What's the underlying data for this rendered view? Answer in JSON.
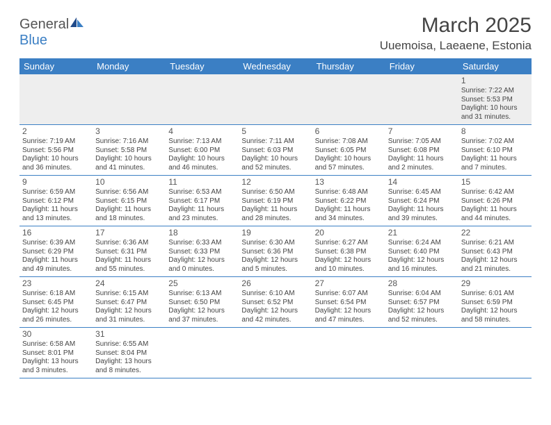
{
  "brand": {
    "part1": "General",
    "part2": "Blue"
  },
  "title": "March 2025",
  "location": "Uuemoisa, Laeaene, Estonia",
  "colors": {
    "header_bg": "#3b7fc4",
    "text": "#444444"
  },
  "weekdays": [
    "Sunday",
    "Monday",
    "Tuesday",
    "Wednesday",
    "Thursday",
    "Friday",
    "Saturday"
  ],
  "weeks": [
    [
      null,
      null,
      null,
      null,
      null,
      null,
      {
        "n": "1",
        "sr": "Sunrise: 7:22 AM",
        "ss": "Sunset: 5:53 PM",
        "d1": "Daylight: 10 hours",
        "d2": "and 31 minutes."
      }
    ],
    [
      {
        "n": "2",
        "sr": "Sunrise: 7:19 AM",
        "ss": "Sunset: 5:56 PM",
        "d1": "Daylight: 10 hours",
        "d2": "and 36 minutes."
      },
      {
        "n": "3",
        "sr": "Sunrise: 7:16 AM",
        "ss": "Sunset: 5:58 PM",
        "d1": "Daylight: 10 hours",
        "d2": "and 41 minutes."
      },
      {
        "n": "4",
        "sr": "Sunrise: 7:13 AM",
        "ss": "Sunset: 6:00 PM",
        "d1": "Daylight: 10 hours",
        "d2": "and 46 minutes."
      },
      {
        "n": "5",
        "sr": "Sunrise: 7:11 AM",
        "ss": "Sunset: 6:03 PM",
        "d1": "Daylight: 10 hours",
        "d2": "and 52 minutes."
      },
      {
        "n": "6",
        "sr": "Sunrise: 7:08 AM",
        "ss": "Sunset: 6:05 PM",
        "d1": "Daylight: 10 hours",
        "d2": "and 57 minutes."
      },
      {
        "n": "7",
        "sr": "Sunrise: 7:05 AM",
        "ss": "Sunset: 6:08 PM",
        "d1": "Daylight: 11 hours",
        "d2": "and 2 minutes."
      },
      {
        "n": "8",
        "sr": "Sunrise: 7:02 AM",
        "ss": "Sunset: 6:10 PM",
        "d1": "Daylight: 11 hours",
        "d2": "and 7 minutes."
      }
    ],
    [
      {
        "n": "9",
        "sr": "Sunrise: 6:59 AM",
        "ss": "Sunset: 6:12 PM",
        "d1": "Daylight: 11 hours",
        "d2": "and 13 minutes."
      },
      {
        "n": "10",
        "sr": "Sunrise: 6:56 AM",
        "ss": "Sunset: 6:15 PM",
        "d1": "Daylight: 11 hours",
        "d2": "and 18 minutes."
      },
      {
        "n": "11",
        "sr": "Sunrise: 6:53 AM",
        "ss": "Sunset: 6:17 PM",
        "d1": "Daylight: 11 hours",
        "d2": "and 23 minutes."
      },
      {
        "n": "12",
        "sr": "Sunrise: 6:50 AM",
        "ss": "Sunset: 6:19 PM",
        "d1": "Daylight: 11 hours",
        "d2": "and 28 minutes."
      },
      {
        "n": "13",
        "sr": "Sunrise: 6:48 AM",
        "ss": "Sunset: 6:22 PM",
        "d1": "Daylight: 11 hours",
        "d2": "and 34 minutes."
      },
      {
        "n": "14",
        "sr": "Sunrise: 6:45 AM",
        "ss": "Sunset: 6:24 PM",
        "d1": "Daylight: 11 hours",
        "d2": "and 39 minutes."
      },
      {
        "n": "15",
        "sr": "Sunrise: 6:42 AM",
        "ss": "Sunset: 6:26 PM",
        "d1": "Daylight: 11 hours",
        "d2": "and 44 minutes."
      }
    ],
    [
      {
        "n": "16",
        "sr": "Sunrise: 6:39 AM",
        "ss": "Sunset: 6:29 PM",
        "d1": "Daylight: 11 hours",
        "d2": "and 49 minutes."
      },
      {
        "n": "17",
        "sr": "Sunrise: 6:36 AM",
        "ss": "Sunset: 6:31 PM",
        "d1": "Daylight: 11 hours",
        "d2": "and 55 minutes."
      },
      {
        "n": "18",
        "sr": "Sunrise: 6:33 AM",
        "ss": "Sunset: 6:33 PM",
        "d1": "Daylight: 12 hours",
        "d2": "and 0 minutes."
      },
      {
        "n": "19",
        "sr": "Sunrise: 6:30 AM",
        "ss": "Sunset: 6:36 PM",
        "d1": "Daylight: 12 hours",
        "d2": "and 5 minutes."
      },
      {
        "n": "20",
        "sr": "Sunrise: 6:27 AM",
        "ss": "Sunset: 6:38 PM",
        "d1": "Daylight: 12 hours",
        "d2": "and 10 minutes."
      },
      {
        "n": "21",
        "sr": "Sunrise: 6:24 AM",
        "ss": "Sunset: 6:40 PM",
        "d1": "Daylight: 12 hours",
        "d2": "and 16 minutes."
      },
      {
        "n": "22",
        "sr": "Sunrise: 6:21 AM",
        "ss": "Sunset: 6:43 PM",
        "d1": "Daylight: 12 hours",
        "d2": "and 21 minutes."
      }
    ],
    [
      {
        "n": "23",
        "sr": "Sunrise: 6:18 AM",
        "ss": "Sunset: 6:45 PM",
        "d1": "Daylight: 12 hours",
        "d2": "and 26 minutes."
      },
      {
        "n": "24",
        "sr": "Sunrise: 6:15 AM",
        "ss": "Sunset: 6:47 PM",
        "d1": "Daylight: 12 hours",
        "d2": "and 31 minutes."
      },
      {
        "n": "25",
        "sr": "Sunrise: 6:13 AM",
        "ss": "Sunset: 6:50 PM",
        "d1": "Daylight: 12 hours",
        "d2": "and 37 minutes."
      },
      {
        "n": "26",
        "sr": "Sunrise: 6:10 AM",
        "ss": "Sunset: 6:52 PM",
        "d1": "Daylight: 12 hours",
        "d2": "and 42 minutes."
      },
      {
        "n": "27",
        "sr": "Sunrise: 6:07 AM",
        "ss": "Sunset: 6:54 PM",
        "d1": "Daylight: 12 hours",
        "d2": "and 47 minutes."
      },
      {
        "n": "28",
        "sr": "Sunrise: 6:04 AM",
        "ss": "Sunset: 6:57 PM",
        "d1": "Daylight: 12 hours",
        "d2": "and 52 minutes."
      },
      {
        "n": "29",
        "sr": "Sunrise: 6:01 AM",
        "ss": "Sunset: 6:59 PM",
        "d1": "Daylight: 12 hours",
        "d2": "and 58 minutes."
      }
    ],
    [
      {
        "n": "30",
        "sr": "Sunrise: 6:58 AM",
        "ss": "Sunset: 8:01 PM",
        "d1": "Daylight: 13 hours",
        "d2": "and 3 minutes."
      },
      {
        "n": "31",
        "sr": "Sunrise: 6:55 AM",
        "ss": "Sunset: 8:04 PM",
        "d1": "Daylight: 13 hours",
        "d2": "and 8 minutes."
      },
      null,
      null,
      null,
      null,
      null
    ]
  ]
}
